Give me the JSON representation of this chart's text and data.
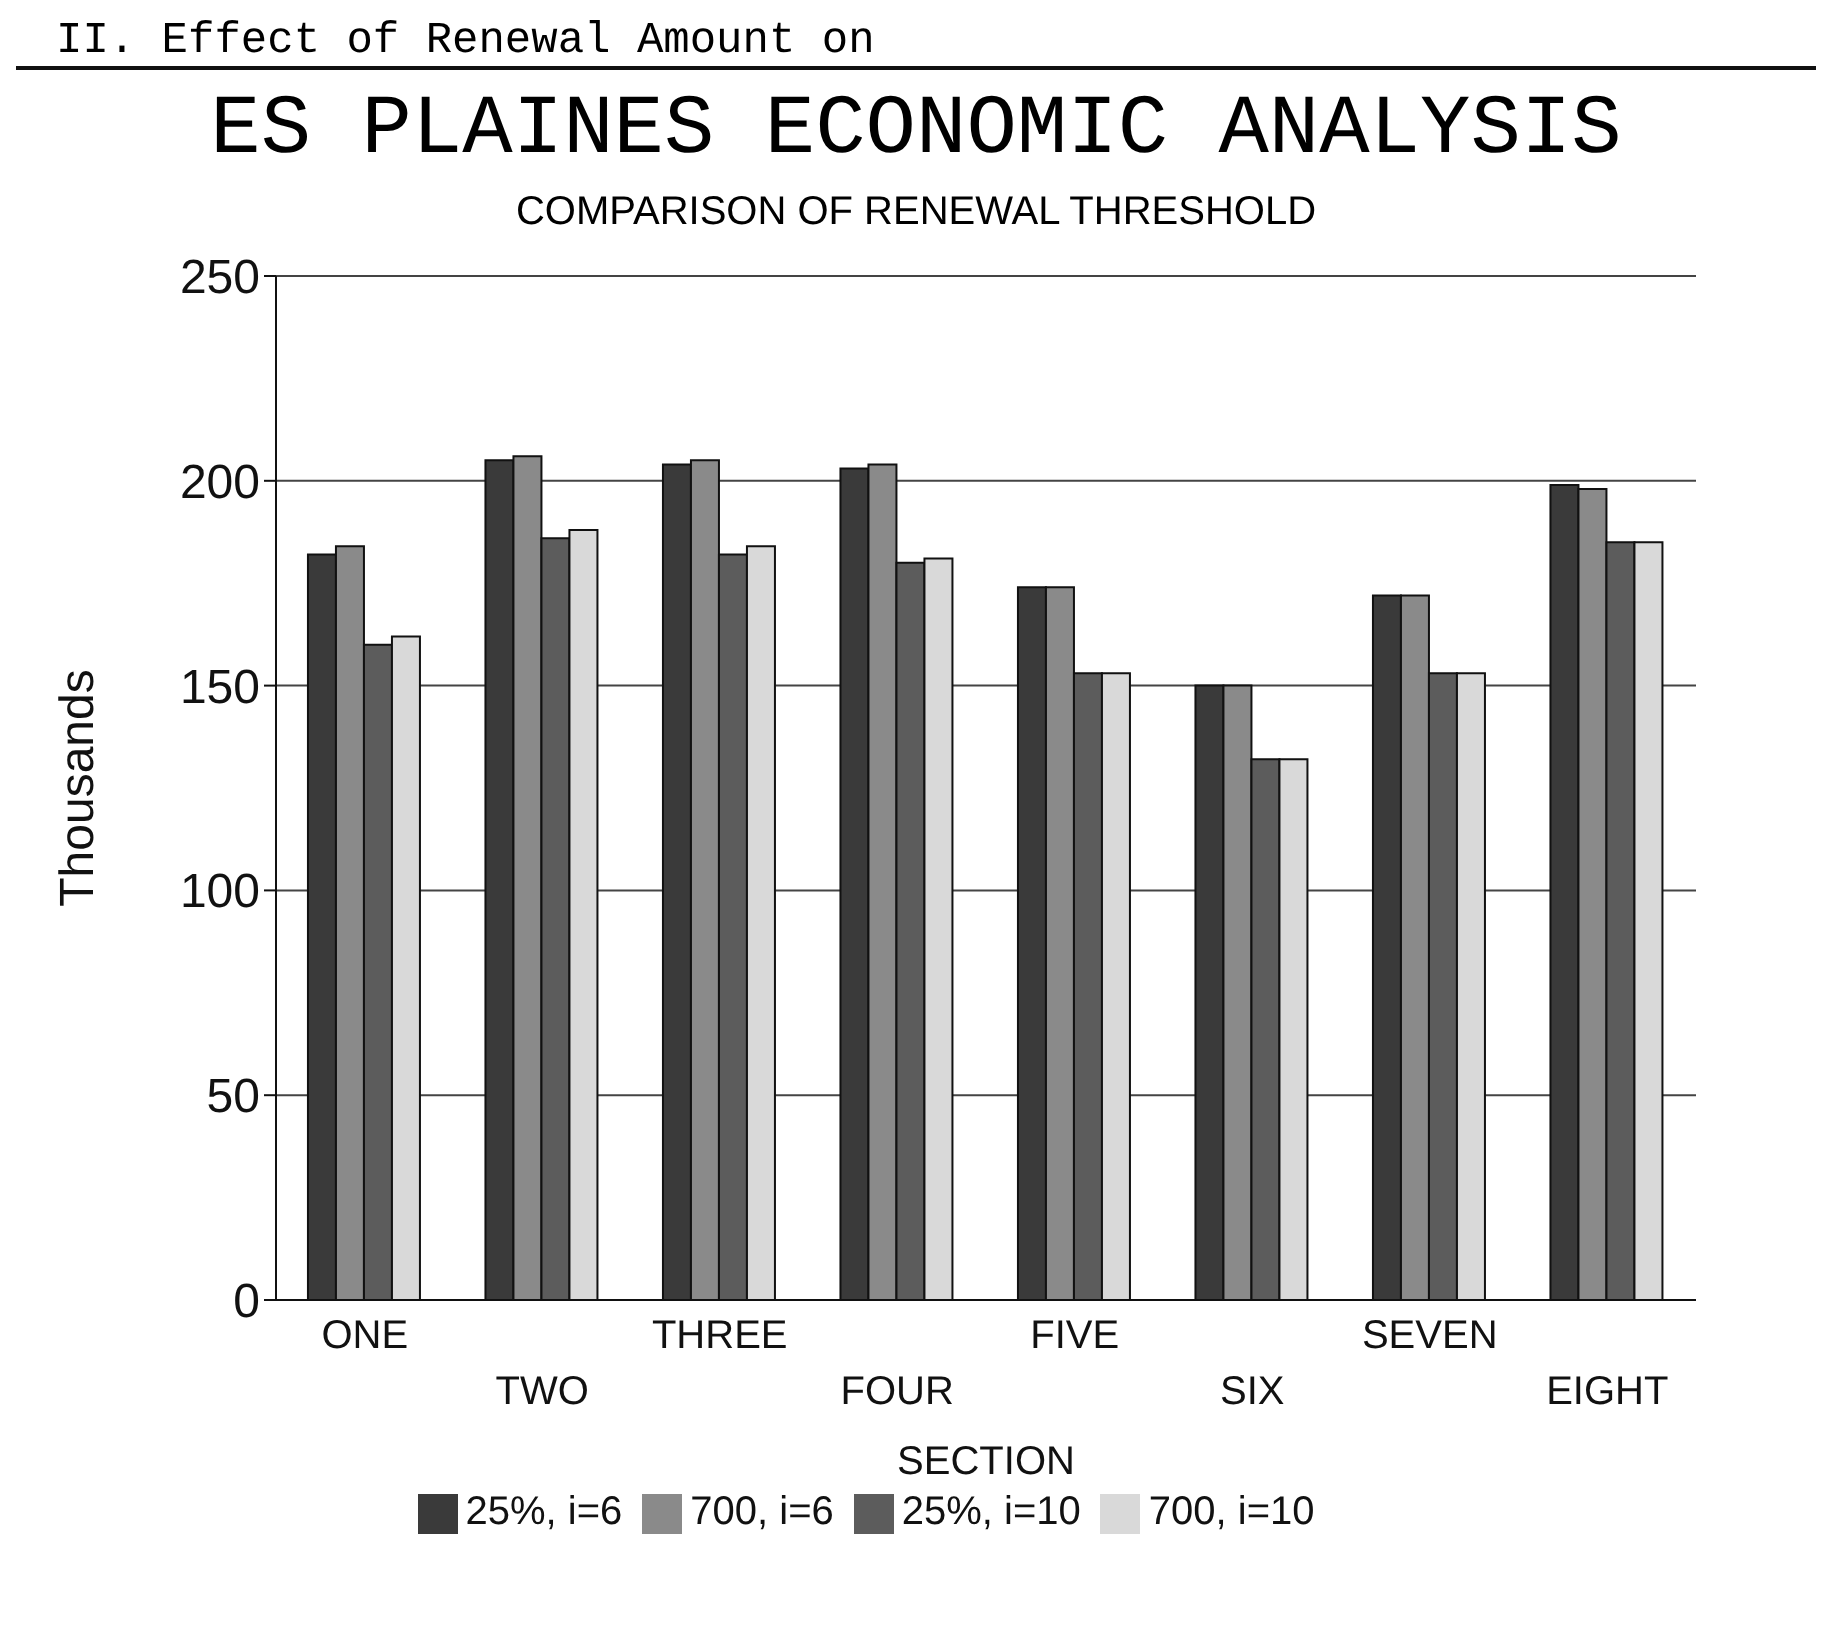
{
  "chart_data": {
    "type": "bar",
    "title": "ES PLAINES ECONOMIC ANALYSIS",
    "subtitle": "COMPARISON OF RENEWAL THRESHOLD",
    "annotations": [
      "II.  Effect of Renewal Amount on"
    ],
    "xlabel": "SECTION",
    "ylabel": "Thousands",
    "categories": [
      "ONE",
      "TWO",
      "THREE",
      "FOUR",
      "FIVE",
      "SIX",
      "SEVEN",
      "EIGHT"
    ],
    "series": [
      {
        "name": "25%, i=6",
        "color": "#3a3a3a",
        "values": [
          182,
          205,
          204,
          203,
          174,
          150,
          172,
          199
        ]
      },
      {
        "name": "700, i=6",
        "color": "#8a8a8a",
        "values": [
          184,
          206,
          205,
          204,
          174,
          150,
          172,
          198
        ]
      },
      {
        "name": "25%, i=10",
        "color": "#5c5c5c",
        "values": [
          160,
          186,
          182,
          180,
          153,
          132,
          153,
          185
        ]
      },
      {
        "name": "700, i=10",
        "color": "#d9d9d9",
        "values": [
          162,
          188,
          184,
          181,
          153,
          132,
          153,
          185
        ]
      }
    ],
    "ylim": [
      0,
      250
    ],
    "yticks": [
      0,
      50,
      100,
      150,
      200,
      250
    ],
    "grid": "y",
    "legend": "bottom"
  }
}
